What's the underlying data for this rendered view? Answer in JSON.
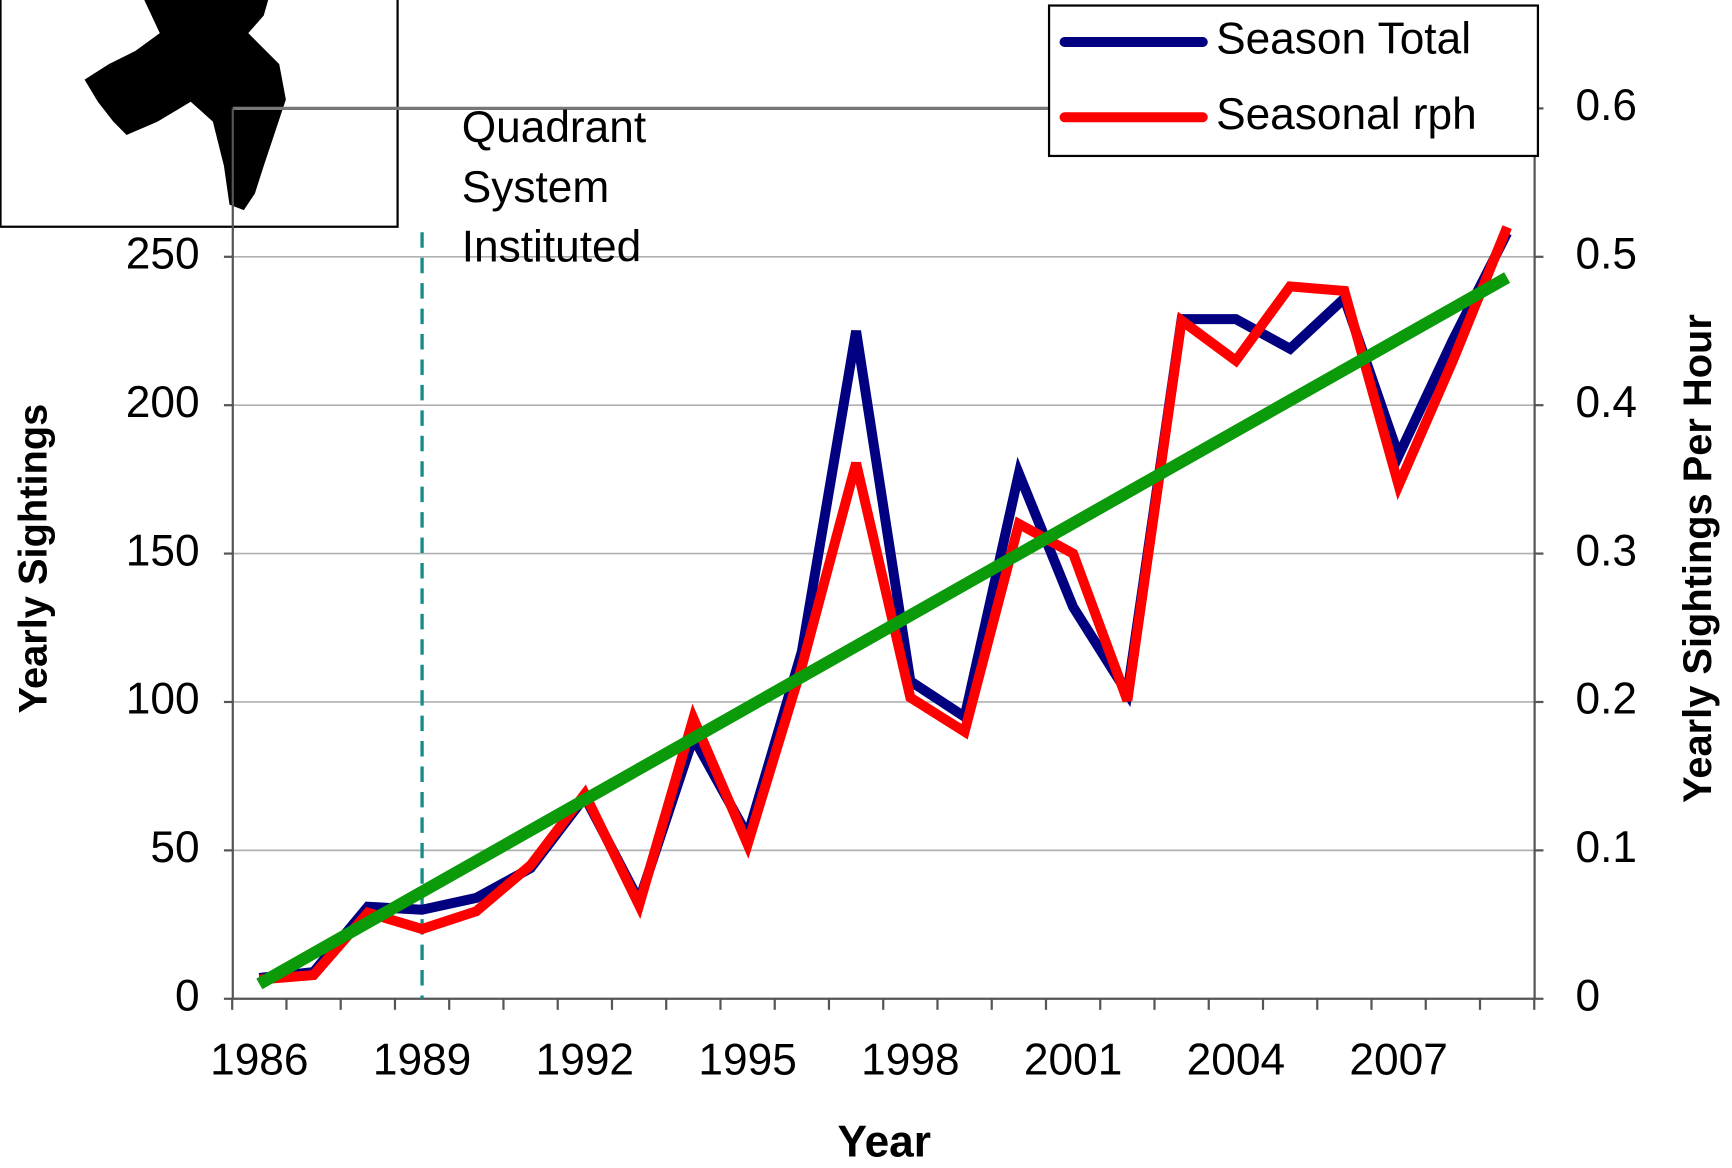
{
  "chart_data": {
    "type": "line",
    "x_label": "Year",
    "y_label": "Yearly Sightings",
    "y2_label": "Yearly Sightings Per Hour",
    "categories": [
      "1986",
      null,
      null,
      "1989",
      null,
      null,
      "1992",
      null,
      null,
      "1995",
      null,
      null,
      "1998",
      null,
      null,
      "2001",
      null,
      null,
      "2004",
      null,
      null,
      "2007",
      null,
      null
    ],
    "ylim": [
      0,
      300
    ],
    "yticks": [
      0,
      50,
      100,
      150,
      200,
      250
    ],
    "y2lim": [
      0,
      0.6
    ],
    "y2ticks": [
      0,
      0.1,
      0.2,
      0.3,
      0.4,
      0.5,
      0.6
    ],
    "grid": true,
    "legend": "top-right",
    "series": [
      {
        "name": "Season Total",
        "color": "#000080",
        "values": [
          7,
          9,
          31,
          30,
          34,
          44,
          68,
          33,
          88,
          55,
          117,
          225,
          107,
          95,
          177,
          132,
          103,
          229,
          229,
          219,
          236,
          183,
          222,
          258
        ]
      },
      {
        "name": "Seasonal rph",
        "color": "#ff0000",
        "axis": "y2",
        "values": [
          0.013,
          0.016,
          0.058,
          0.047,
          0.059,
          0.09,
          0.138,
          0.063,
          0.189,
          0.104,
          0.224,
          0.361,
          0.203,
          0.18,
          0.32,
          0.3,
          0.201,
          0.457,
          0.43,
          0.48,
          0.477,
          0.346,
          0.43,
          0.52
        ]
      }
    ],
    "trendline": {
      "color": "#0a9a0a",
      "values": [
        5,
        243
      ]
    },
    "annotation": {
      "category": "1989",
      "color": "#148c8c",
      "lines": [
        "Quadrant",
        "System",
        "Instituted"
      ]
    }
  }
}
